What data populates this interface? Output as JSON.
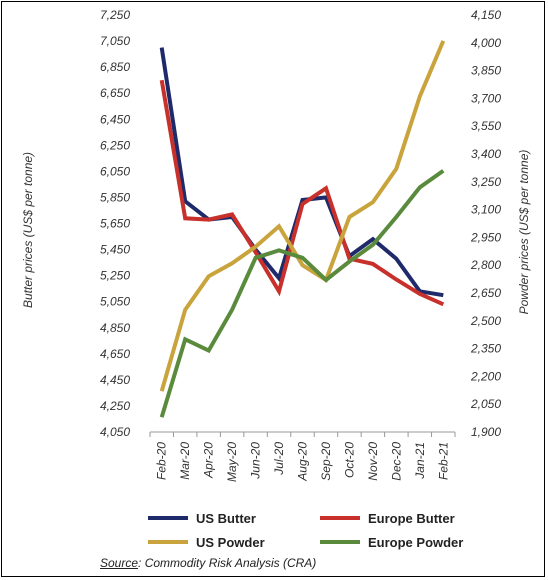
{
  "chart_data": {
    "type": "line",
    "categories": [
      "Feb-20",
      "Mar-20",
      "Apr-20",
      "May-20",
      "Jun-20",
      "Jul-20",
      "Aug-20",
      "Sep-20",
      "Oct-20",
      "Nov-20",
      "Dec-20",
      "Jan-21",
      "Feb-21"
    ],
    "ylabel": "Butter prices (US$ per tonne)",
    "y2label": "Powder prices (US$ per tonne)",
    "ylim": [
      4050,
      7250
    ],
    "y2lim": [
      1900,
      4150
    ],
    "yticks": [
      "4,050",
      "4,250",
      "4,450",
      "4,650",
      "4,850",
      "5,050",
      "5,250",
      "5,450",
      "5,650",
      "5,850",
      "6,050",
      "6,250",
      "6,450",
      "6,650",
      "6,850",
      "7,050",
      "7,250"
    ],
    "y2ticks": [
      "1,900",
      "2,050",
      "2,200",
      "2,350",
      "2,500",
      "2,650",
      "2,800",
      "2,950",
      "3,100",
      "3,250",
      "3,400",
      "3,550",
      "3,700",
      "3,850",
      "4,000",
      "4,150"
    ],
    "series": [
      {
        "name": "US Butter",
        "axis": "left",
        "color": "#1f2a6b",
        "values": [
          7000,
          5820,
          5680,
          5700,
          5450,
          5230,
          5830,
          5850,
          5400,
          5530,
          5380,
          5130,
          5100
        ]
      },
      {
        "name": "Europe Butter",
        "axis": "left",
        "color": "#c8302b",
        "values": [
          6750,
          5690,
          5680,
          5720,
          5430,
          5130,
          5800,
          5920,
          5380,
          5340,
          5220,
          5110,
          5030
        ]
      },
      {
        "name": "US Powder",
        "axis": "right",
        "color": "#c9a33c",
        "values": [
          2120,
          2560,
          2740,
          2810,
          2900,
          3010,
          2800,
          2720,
          3060,
          3140,
          3320,
          3710,
          4010
        ]
      },
      {
        "name": "Europe Powder",
        "axis": "right",
        "color": "#5a8a3b",
        "values": [
          1980,
          2400,
          2340,
          2560,
          2840,
          2880,
          2840,
          2720,
          2820,
          2910,
          3060,
          3220,
          3310
        ]
      }
    ],
    "legend_position": "bottom"
  },
  "source": {
    "label": "Source",
    "text": ": Commodity Risk Analysis (CRA)"
  }
}
